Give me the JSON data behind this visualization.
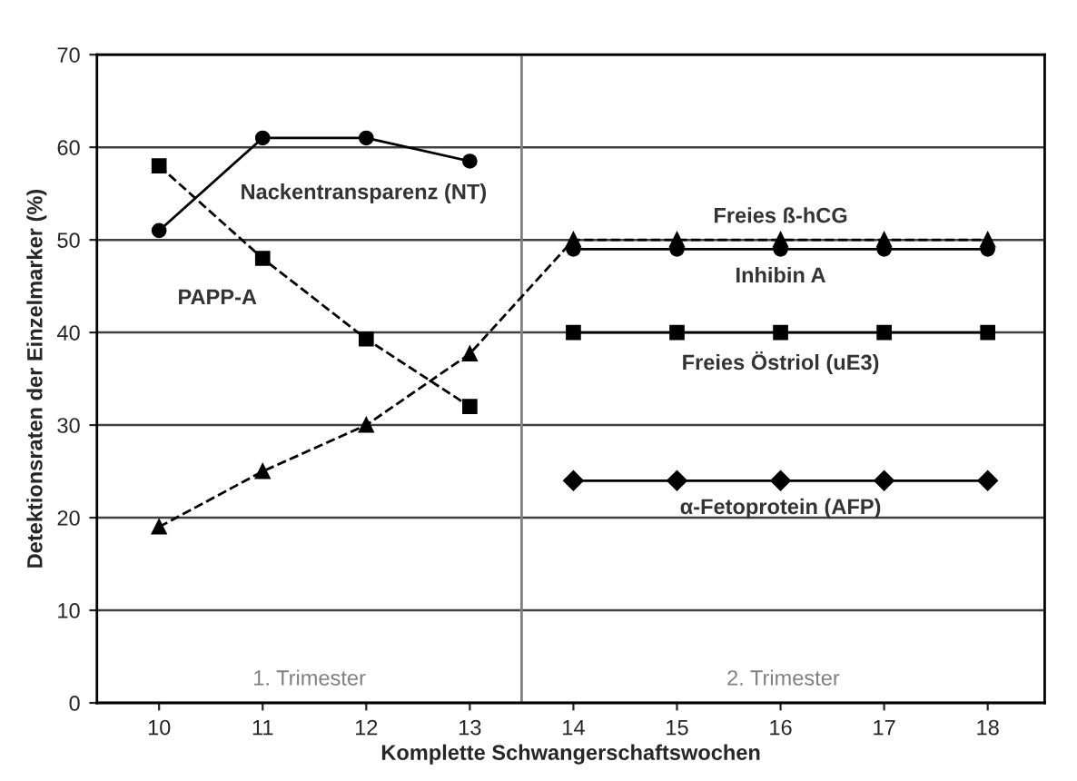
{
  "chart_data": {
    "type": "line",
    "xlabel": "Komplette Schwangerschaftswochen",
    "ylabel": "Detektionsraten der Einzelmarker (%)",
    "xlim": [
      9.4,
      18.55
    ],
    "xticks": [
      10,
      11,
      12,
      13,
      14,
      15,
      16,
      17,
      18
    ],
    "ylim": [
      0,
      70
    ],
    "yticks": [
      0,
      10,
      20,
      30,
      40,
      50,
      60,
      70
    ],
    "grid": "y",
    "legend": false,
    "series": [
      {
        "name": "Nackentransparenz (NT)",
        "color": "#000000",
        "marker": "circle",
        "line_style": "solid",
        "x": [
          10,
          11,
          12,
          13
        ],
        "values": [
          51,
          61,
          61,
          58.5
        ]
      },
      {
        "name": "PAPP-A",
        "color": "#000000",
        "marker": "square",
        "line_style": "dashed",
        "x": [
          10,
          11,
          12,
          13
        ],
        "values": [
          58,
          48,
          39.3,
          32
        ]
      },
      {
        "name": "Freies ß-hCG",
        "color": "#000000",
        "marker": "triangle",
        "line_style": "dashed",
        "x": [
          10,
          11,
          12,
          13,
          14,
          15,
          16,
          17,
          18
        ],
        "values": [
          19,
          25,
          30,
          37.7,
          50,
          50,
          50,
          50,
          50
        ]
      },
      {
        "name": "Inhibin A",
        "color": "#000000",
        "marker": "circle",
        "line_style": "solid",
        "x": [
          14,
          15,
          16,
          17,
          18
        ],
        "values": [
          49,
          49,
          49,
          49,
          49
        ]
      },
      {
        "name": "Freies Östriol (uE3)",
        "color": "#000000",
        "marker": "square",
        "line_style": "solid",
        "x": [
          14,
          15,
          16,
          17,
          18
        ],
        "values": [
          40,
          40,
          40,
          40,
          40
        ]
      },
      {
        "name": "α-Fetoprotein (AFP)",
        "color": "#000000",
        "marker": "diamond",
        "line_style": "solid",
        "x": [
          14,
          15,
          16,
          17,
          18
        ],
        "values": [
          24,
          24,
          24,
          24,
          24
        ]
      }
    ],
    "ref_lines": [
      {
        "axis": "x",
        "value": 13.5,
        "color": "#808080"
      }
    ],
    "annotations": [
      "1. Trimester",
      "2. Trimester"
    ]
  }
}
